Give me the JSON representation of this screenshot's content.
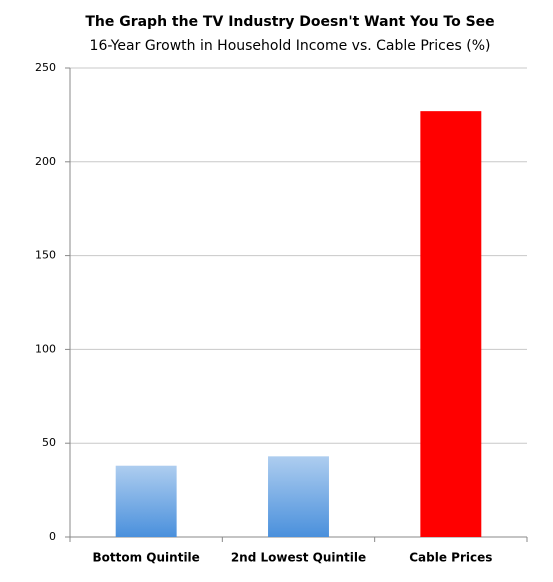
{
  "chart_data": {
    "type": "bar",
    "title": "The Graph the TV Industry Doesn't Want You To See",
    "subtitle": "16-Year Growth in Household Income vs. Cable Prices (%)",
    "categories": [
      "Bottom Quintile",
      "2nd Lowest Quintile",
      "Cable Prices"
    ],
    "values": [
      38,
      43,
      227
    ],
    "colors": [
      "#4a90dc",
      "#4a90dc",
      "#ff0000"
    ],
    "fill_style": [
      "gradient",
      "gradient",
      "solid"
    ],
    "ylim": [
      0,
      250
    ],
    "yticks": [
      0,
      50,
      100,
      150,
      200,
      250
    ],
    "grid": true
  }
}
